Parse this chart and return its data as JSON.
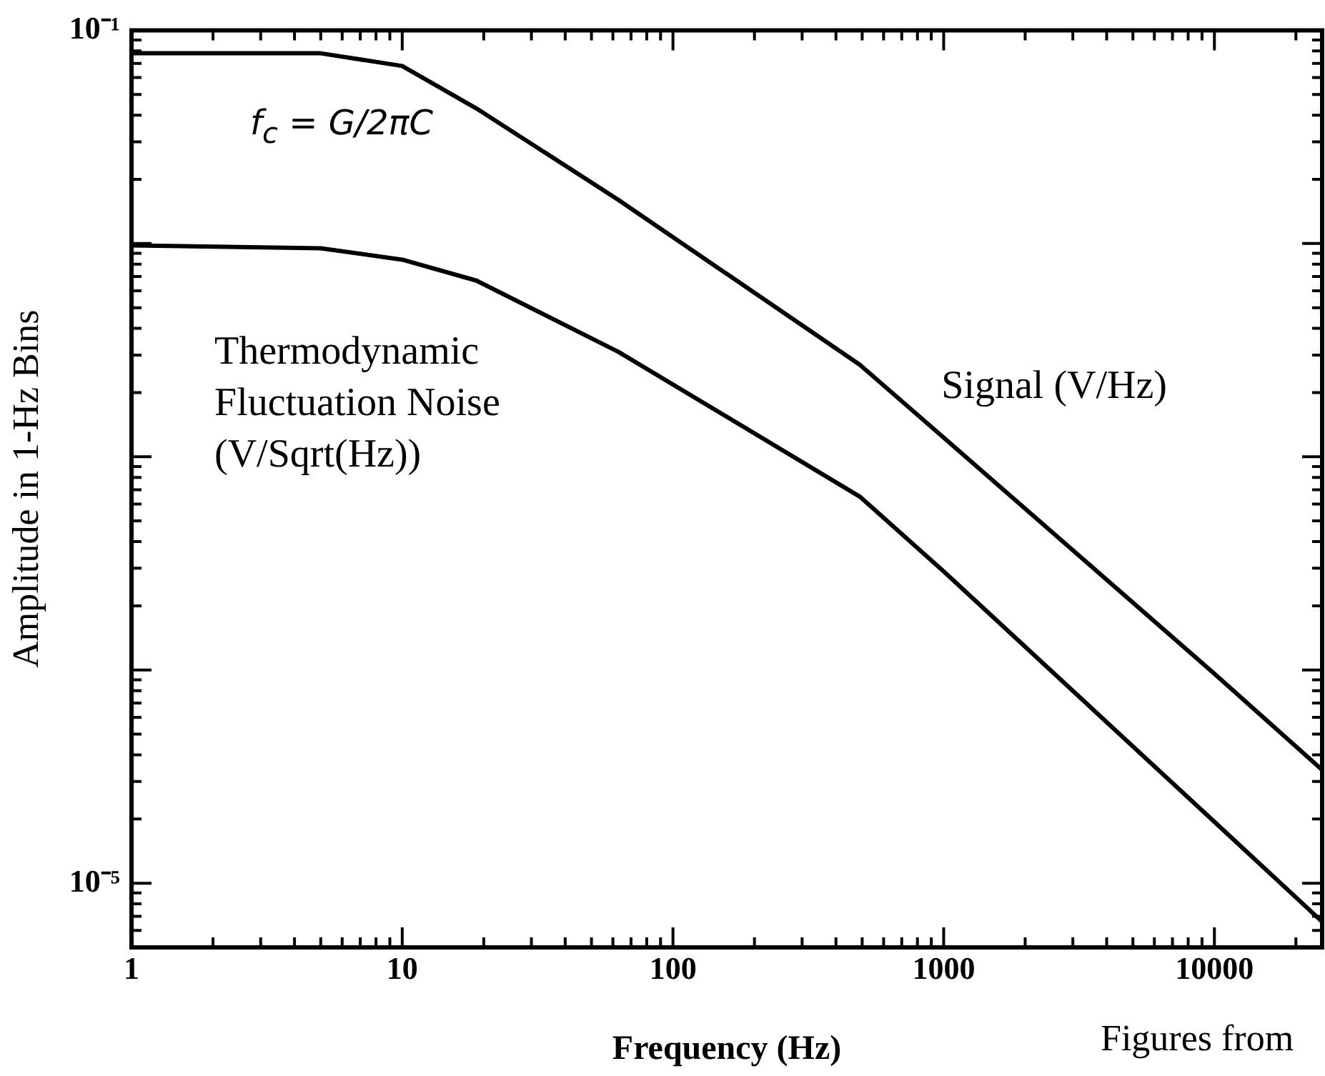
{
  "chart_data": {
    "type": "line",
    "xlabel": "Frequency (Hz)",
    "ylabel": "Amplitude in 1-Hz Bins",
    "log": "xy",
    "marker": "none",
    "line_style": "solid",
    "legend": false,
    "xlim": [
      1,
      25000
    ],
    "xticks": [
      1,
      10,
      100,
      1000,
      10000
    ],
    "ylim": [
      5e-06,
      0.1
    ],
    "yticks": [
      {
        "value": 0.1,
        "label": "10⁻¹"
      },
      {
        "value": 0.01,
        "label": null
      },
      {
        "value": 0.001,
        "label": null
      },
      {
        "value": 0.0001,
        "label": null
      },
      {
        "value": 1e-05,
        "label": "10⁻⁵"
      }
    ],
    "x": [
      1,
      5,
      10,
      18.8,
      63,
      490,
      1000,
      10000,
      25000
    ],
    "series": [
      {
        "name": "Signal (V/Hz)",
        "color": "#000000",
        "values": [
          0.078,
          0.078,
          0.068,
          0.043,
          0.016,
          0.0027,
          0.00123,
          9.6e-05,
          3.4e-05
        ]
      },
      {
        "name": "Thermodynamic Fluctuation Noise (V/Sqrt(Hz))",
        "color": "#000000",
        "values": [
          0.0098,
          0.0095,
          0.0084,
          0.0067,
          0.0031,
          0.00065,
          0.00029,
          1.94e-05,
          6.6e-06
        ]
      }
    ],
    "annotations": [
      "f$_{c}$ = G/2πC",
      "Figures from"
    ]
  }
}
